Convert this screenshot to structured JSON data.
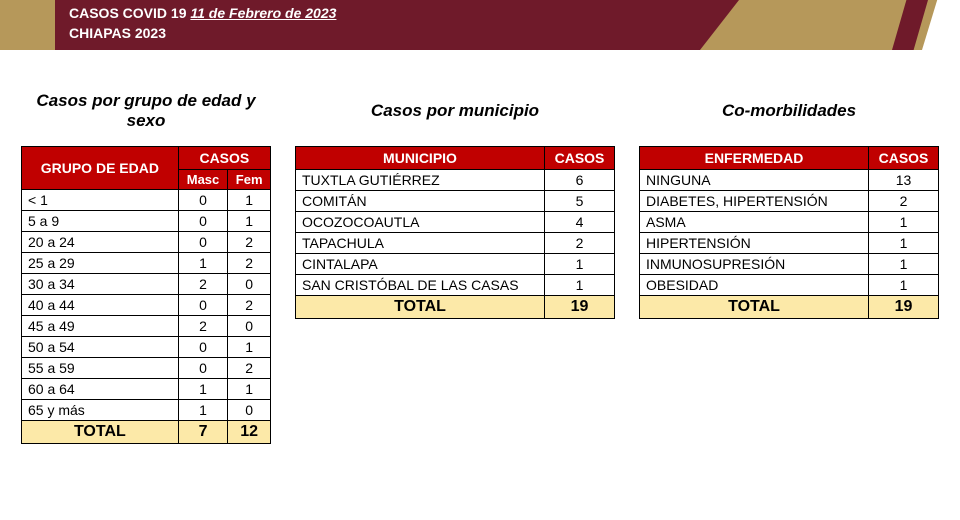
{
  "header": {
    "line1_prefix": "CASOS COVID 19 ",
    "date": "11 de Febrero de 2023",
    "line2": "CHIAPAS 2023"
  },
  "colors": {
    "header_red": "#6f1a2a",
    "gold": "#b6985a",
    "table_header": "#c00000",
    "total_bg": "#fce9a8"
  },
  "age_sex": {
    "title": "Casos por grupo de edad y sexo",
    "col_group": "GRUPO DE EDAD",
    "col_cases": "CASOS",
    "col_masc": "Masc",
    "col_fem": "Fem",
    "rows": [
      {
        "g": "< 1",
        "m": 0,
        "f": 1
      },
      {
        "g": "5 a 9",
        "m": 0,
        "f": 1
      },
      {
        "g": "20 a 24",
        "m": 0,
        "f": 2
      },
      {
        "g": "25 a 29",
        "m": 1,
        "f": 2
      },
      {
        "g": "30 a 34",
        "m": 2,
        "f": 0
      },
      {
        "g": "40 a 44",
        "m": 0,
        "f": 2
      },
      {
        "g": "45 a 49",
        "m": 2,
        "f": 0
      },
      {
        "g": "50 a 54",
        "m": 0,
        "f": 1
      },
      {
        "g": "55 a 59",
        "m": 0,
        "f": 2
      },
      {
        "g": "60 a 64",
        "m": 1,
        "f": 1
      },
      {
        "g": "65 y más",
        "m": 1,
        "f": 0
      }
    ],
    "total_label": "TOTAL",
    "total_m": 7,
    "total_f": 12
  },
  "municipio": {
    "title": "Casos por municipio",
    "col_mun": "MUNICIPIO",
    "col_cases": "CASOS",
    "rows": [
      {
        "n": "TUXTLA GUTIÉRREZ",
        "c": 6
      },
      {
        "n": "COMITÁN",
        "c": 5
      },
      {
        "n": "OCOZOCOAUTLA",
        "c": 4
      },
      {
        "n": "TAPACHULA",
        "c": 2
      },
      {
        "n": "CINTALAPA",
        "c": 1
      },
      {
        "n": "SAN CRISTÓBAL DE LAS CASAS",
        "c": 1
      }
    ],
    "total_label": "TOTAL",
    "total": 19
  },
  "comorb": {
    "title": "Co-morbilidades",
    "col_enf": "ENFERMEDAD",
    "col_cases": "CASOS",
    "rows": [
      {
        "n": "NINGUNA",
        "c": 13
      },
      {
        "n": "DIABETES, HIPERTENSIÓN",
        "c": 2
      },
      {
        "n": "ASMA",
        "c": 1
      },
      {
        "n": "HIPERTENSIÓN",
        "c": 1
      },
      {
        "n": "INMUNOSUPRESIÓN",
        "c": 1
      },
      {
        "n": "OBESIDAD",
        "c": 1
      }
    ],
    "total_label": "TOTAL",
    "total": 19
  }
}
